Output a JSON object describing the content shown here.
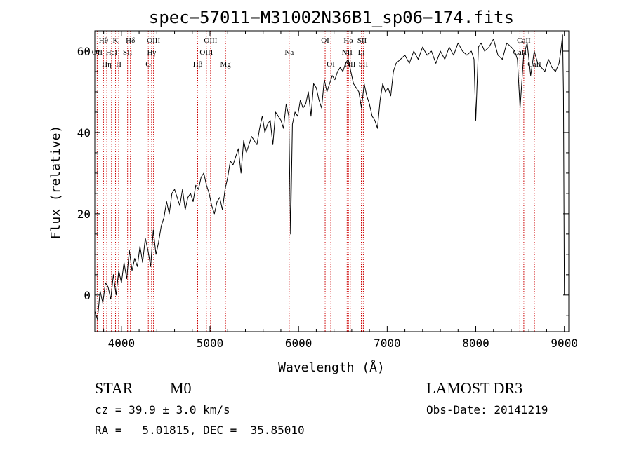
{
  "chart_data": {
    "type": "line",
    "title": "spec−57011−M31002N36B1_sp06−174.fits",
    "xlabel": "Wavelength (Å)",
    "ylabel": "Flux (relative)",
    "xlim": [
      3700,
      9050
    ],
    "ylim": [
      -9,
      65
    ],
    "x_ticks": [
      4000,
      5000,
      6000,
      7000,
      8000,
      9000
    ],
    "y_ticks": [
      0,
      20,
      40,
      60
    ],
    "series": [
      {
        "name": "spectrum",
        "x": [
          3700,
          3730,
          3760,
          3790,
          3820,
          3850,
          3880,
          3910,
          3940,
          3970,
          4000,
          4030,
          4060,
          4090,
          4120,
          4150,
          4180,
          4210,
          4240,
          4270,
          4300,
          4330,
          4360,
          4390,
          4420,
          4450,
          4480,
          4510,
          4540,
          4570,
          4600,
          4630,
          4660,
          4690,
          4720,
          4750,
          4780,
          4810,
          4840,
          4870,
          4900,
          4930,
          4960,
          4990,
          5020,
          5050,
          5080,
          5110,
          5140,
          5170,
          5200,
          5230,
          5260,
          5290,
          5320,
          5350,
          5380,
          5410,
          5440,
          5470,
          5500,
          5530,
          5560,
          5590,
          5620,
          5650,
          5680,
          5710,
          5740,
          5770,
          5800,
          5830,
          5860,
          5890,
          5910,
          5930,
          5960,
          5990,
          6020,
          6050,
          6080,
          6110,
          6140,
          6170,
          6200,
          6230,
          6260,
          6290,
          6320,
          6350,
          6380,
          6410,
          6440,
          6470,
          6500,
          6530,
          6560,
          6590,
          6620,
          6650,
          6680,
          6710,
          6740,
          6770,
          6800,
          6830,
          6860,
          6890,
          6920,
          6950,
          6980,
          7010,
          7040,
          7070,
          7100,
          7150,
          7200,
          7250,
          7300,
          7350,
          7400,
          7450,
          7500,
          7550,
          7600,
          7650,
          7700,
          7750,
          7800,
          7850,
          7900,
          7950,
          7980,
          8000,
          8030,
          8060,
          8100,
          8150,
          8200,
          8250,
          8300,
          8350,
          8400,
          8440,
          8470,
          8500,
          8540,
          8580,
          8620,
          8660,
          8700,
          8740,
          8780,
          8820,
          8860,
          8900,
          8940,
          8960,
          8980,
          8990,
          9000
        ],
        "y": [
          -4,
          -6,
          1,
          -2,
          3,
          2,
          -1,
          5,
          0,
          6,
          3,
          8,
          4,
          11,
          6,
          9,
          7,
          12,
          8,
          14,
          11,
          7,
          16,
          10,
          13,
          17,
          19,
          23,
          20,
          25,
          26,
          24,
          22,
          26,
          21,
          24,
          25,
          23,
          27,
          26,
          29,
          30,
          27,
          25,
          22,
          20,
          23,
          24,
          21,
          26,
          29,
          33,
          32,
          34,
          36,
          30,
          38,
          35,
          37,
          39,
          38,
          37,
          41,
          44,
          40,
          42,
          43,
          37,
          45,
          44,
          43,
          41,
          47,
          44,
          15,
          42,
          45,
          44,
          48,
          46,
          47,
          50,
          44,
          52,
          51,
          48,
          46,
          53,
          50,
          52,
          54,
          53,
          55,
          56,
          55,
          57,
          58,
          55,
          52,
          51,
          50,
          46,
          52,
          49,
          47,
          44,
          43,
          41,
          48,
          52,
          50,
          51,
          49,
          55,
          57,
          58,
          59,
          57,
          60,
          58,
          61,
          59,
          60,
          57,
          60,
          58,
          61,
          59,
          62,
          60,
          59,
          60,
          58,
          43,
          61,
          62,
          60,
          61,
          63,
          59,
          58,
          62,
          61,
          60,
          58,
          46,
          59,
          62,
          54,
          60,
          57,
          56,
          55,
          58,
          56,
          55,
          57,
          60,
          64,
          50,
          0
        ]
      }
    ],
    "lines": [
      {
        "label": "OΙΙ",
        "x": 3727,
        "row": 1
      },
      {
        "label": "Hθ",
        "x": 3798,
        "row": 0
      },
      {
        "label": "Hη",
        "x": 3835,
        "row": 2
      },
      {
        "label": "HeI",
        "x": 3889,
        "row": 1
      },
      {
        "label": "K",
        "x": 3934,
        "row": 0
      },
      {
        "label": "H",
        "x": 3969,
        "row": 2
      },
      {
        "label": "SII",
        "x": 4070,
        "row": 1
      },
      {
        "label": "Hδ",
        "x": 4102,
        "row": 0
      },
      {
        "label": "G",
        "x": 4304,
        "row": 2
      },
      {
        "label": "Hγ",
        "x": 4341,
        "row": 1
      },
      {
        "label": "OIII",
        "x": 4363,
        "row": 0
      },
      {
        "label": "Hβ",
        "x": 4861,
        "row": 2
      },
      {
        "label": "OIII",
        "x": 4959,
        "row": 1
      },
      {
        "label": "OIII",
        "x": 5007,
        "row": 0
      },
      {
        "label": "Mg",
        "x": 5175,
        "row": 2
      },
      {
        "label": "Na",
        "x": 5894,
        "row": 1
      },
      {
        "label": "OI",
        "x": 6300,
        "row": 0
      },
      {
        "label": "OI",
        "x": 6364,
        "row": 2
      },
      {
        "label": "NII",
        "x": 6548,
        "row": 1
      },
      {
        "label": "Hα",
        "x": 6563,
        "row": 0
      },
      {
        "label": "NII",
        "x": 6583,
        "row": 2
      },
      {
        "label": "Li",
        "x": 6708,
        "row": 1
      },
      {
        "label": "SII",
        "x": 6716,
        "row": 0
      },
      {
        "label": "SII",
        "x": 6731,
        "row": 2
      },
      {
        "label": "CaII",
        "x": 8498,
        "row": 1
      },
      {
        "label": "CaII",
        "x": 8542,
        "row": 0
      },
      {
        "label": "CaII",
        "x": 8662,
        "row": 2
      }
    ]
  },
  "info": {
    "class_label": "STAR",
    "subclass": "M0",
    "survey": "LAMOST DR3",
    "cz": "cz = 39.9 ± 3.0 km/s",
    "obs_date": "Obs-Date: 20141219",
    "radec": "RA =   5.01815, DEC =  35.85010"
  },
  "colors": {
    "line_marker": "#cc0000",
    "spectrum": "#000000",
    "axis": "#000000"
  }
}
